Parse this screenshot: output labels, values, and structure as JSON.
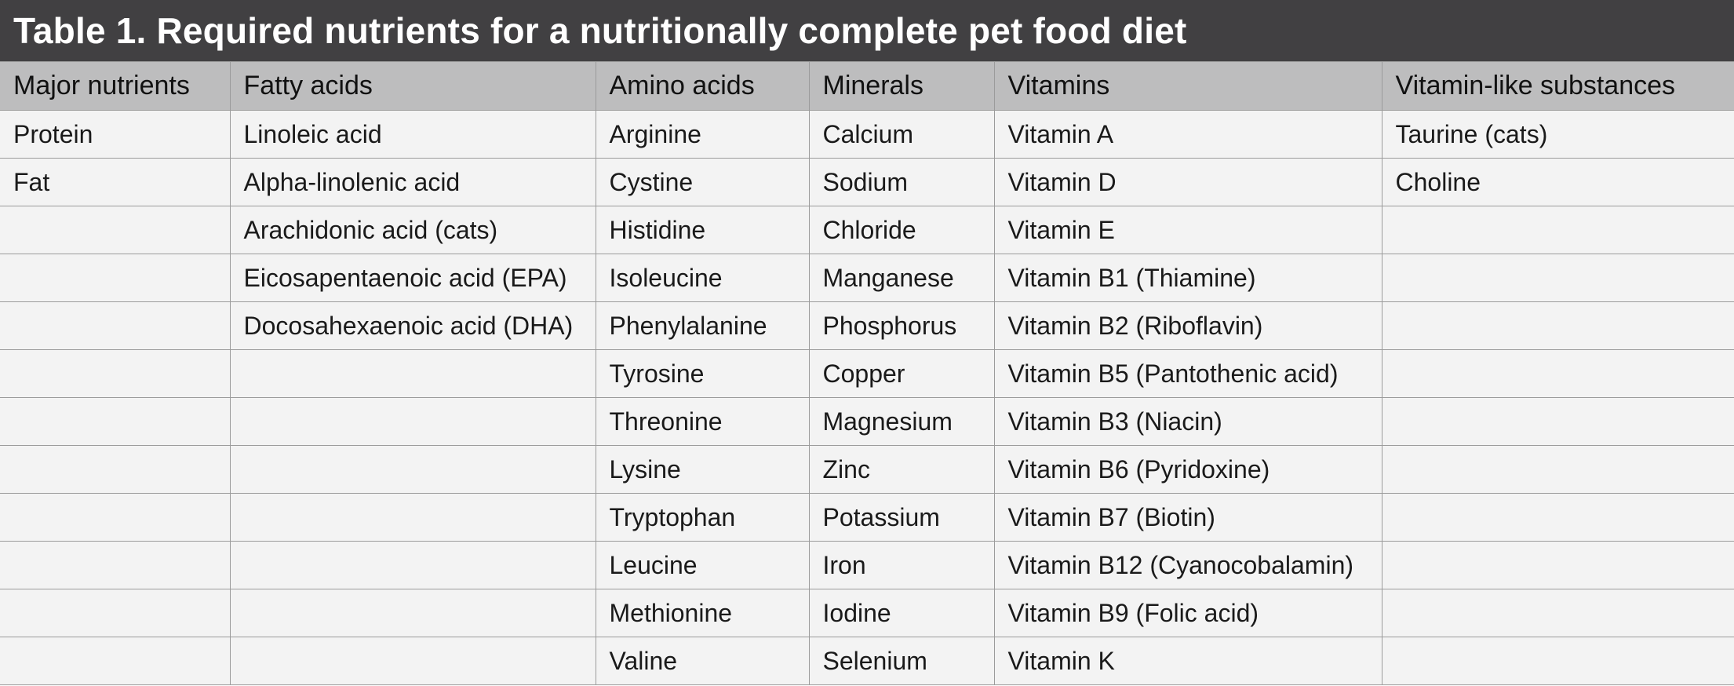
{
  "title": "Table 1. Required nutrients for a nutritionally complete pet food diet",
  "colors": {
    "title_bg": "#414042",
    "header_bg": "#bdbdbe",
    "cell_bg": "#f3f3f3",
    "border": "#9b9b9b"
  },
  "columns": [
    "Major nutrients",
    "Fatty acids",
    "Amino acids",
    "Minerals",
    "Vitamins",
    "Vitamin-like substances"
  ],
  "rows": [
    [
      "Protein",
      "Linoleic acid",
      "Arginine",
      "Calcium",
      "Vitamin A",
      "Taurine (cats)"
    ],
    [
      "Fat",
      "Alpha-linolenic acid",
      "Cystine",
      "Sodium",
      "Vitamin D",
      "Choline"
    ],
    [
      "",
      "Arachidonic acid (cats)",
      "Histidine",
      "Chloride",
      "Vitamin E",
      ""
    ],
    [
      "",
      "Eicosapentaenoic acid (EPA)",
      "Isoleucine",
      "Manganese",
      "Vitamin B1 (Thiamine)",
      ""
    ],
    [
      "",
      "Docosahexaenoic acid (DHA)",
      "Phenylalanine",
      "Phosphorus",
      "Vitamin B2 (Riboflavin)",
      ""
    ],
    [
      "",
      "",
      "Tyrosine",
      "Copper",
      "Vitamin B5 (Pantothenic acid)",
      ""
    ],
    [
      "",
      "",
      "Threonine",
      "Magnesium",
      "Vitamin B3 (Niacin)",
      ""
    ],
    [
      "",
      "",
      "Lysine",
      "Zinc",
      "Vitamin B6 (Pyridoxine)",
      ""
    ],
    [
      "",
      "",
      "Tryptophan",
      "Potassium",
      "Vitamin B7 (Biotin)",
      ""
    ],
    [
      "",
      "",
      "Leucine",
      "Iron",
      "Vitamin B12 (Cyanocobalamin)",
      ""
    ],
    [
      "",
      "",
      "Methionine",
      "Iodine",
      "Vitamin B9 (Folic acid)",
      ""
    ],
    [
      "",
      "",
      "Valine",
      "Selenium",
      "Vitamin K",
      ""
    ]
  ]
}
